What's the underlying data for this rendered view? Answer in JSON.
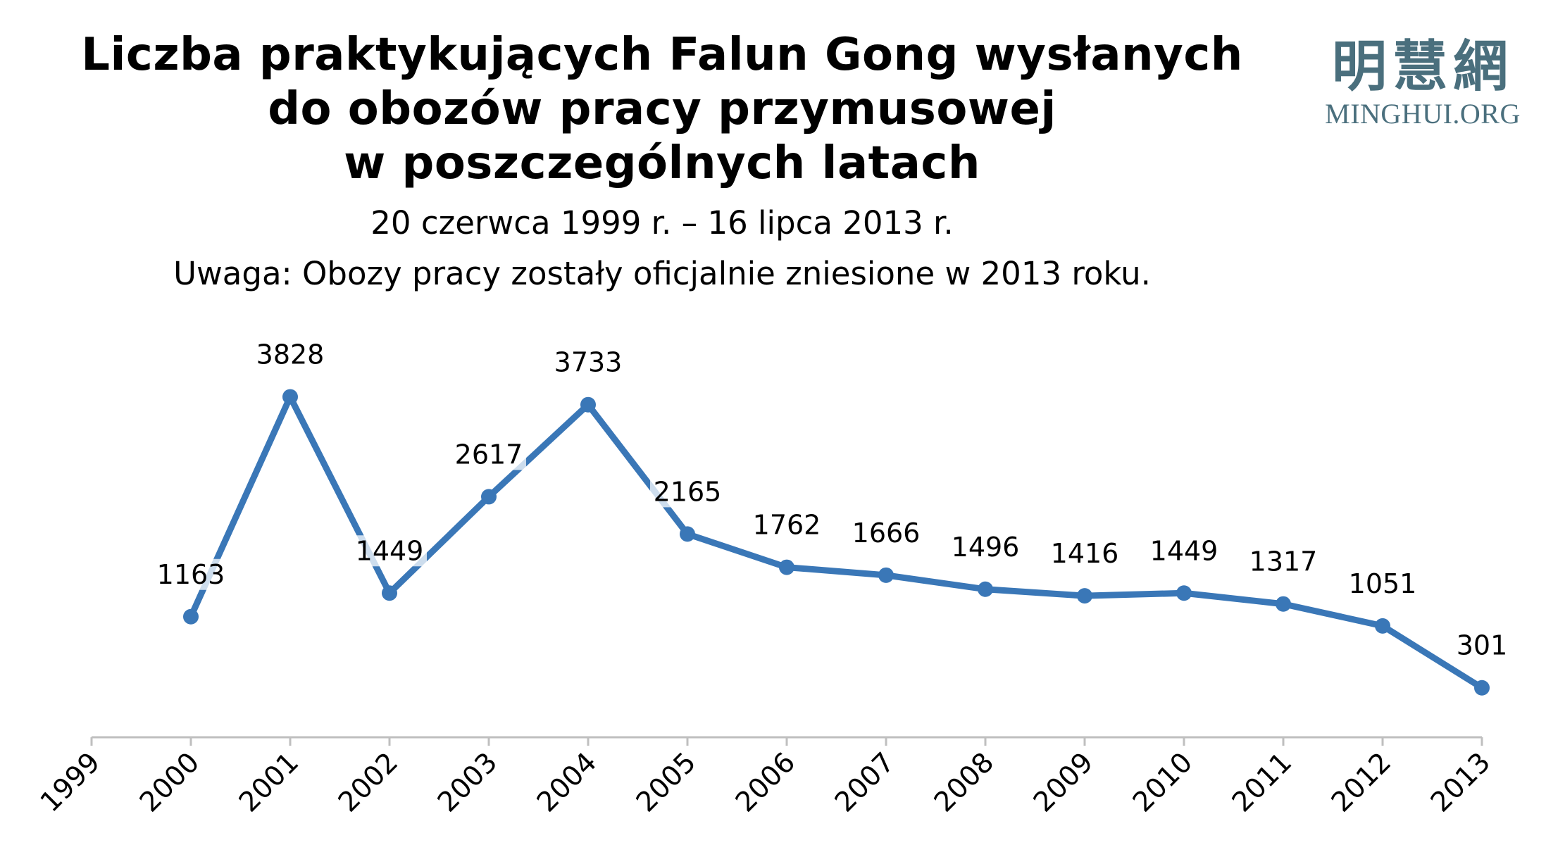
{
  "title_lines": [
    "Liczba praktykujących Falun Gong wysłanych",
    "do obozów pracy przymusowej",
    "w poszczególnych latach"
  ],
  "subtitle": "20 czerwca 1999 r. – 16 lipca 2013 r.",
  "note": "Uwaga: Obozy pracy zostały oficjalnie zniesione w 2013 roku.",
  "logo": {
    "cjk": "明慧網",
    "latin": "MINGHUI.ORG",
    "color": "#4a6f7d"
  },
  "chart_data": {
    "type": "line",
    "x_ticks": [
      "1999",
      "2000",
      "2001",
      "2002",
      "2003",
      "2004",
      "2005",
      "2006",
      "2007",
      "2008",
      "2009",
      "2010",
      "2011",
      "2012",
      "2013"
    ],
    "categories": [
      "2000",
      "2001",
      "2002",
      "2003",
      "2004",
      "2005",
      "2006",
      "2007",
      "2008",
      "2009",
      "2010",
      "2011",
      "2012",
      "2013"
    ],
    "values": [
      1163,
      3828,
      1449,
      2617,
      3733,
      2165,
      1762,
      1666,
      1496,
      1416,
      1449,
      1317,
      1051,
      301
    ],
    "data_labels": [
      "1163",
      "3828",
      "1449",
      "2617",
      "3733",
      "2165",
      "1762",
      "1666",
      "1496",
      "1416",
      "1449",
      "1317",
      "1051",
      "301"
    ],
    "ylim": [
      0,
      4200
    ],
    "line_color": "#3a77b7",
    "grid": false,
    "legend": "none",
    "xlabel": "",
    "ylabel": ""
  }
}
